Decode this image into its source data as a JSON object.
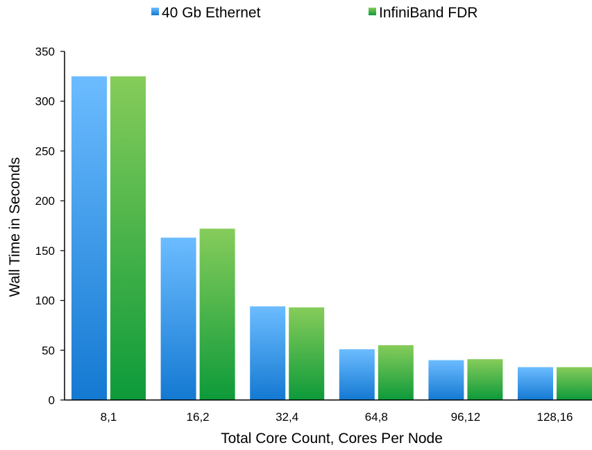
{
  "chart_data": {
    "type": "bar",
    "title": "",
    "xlabel": "Total Core Count, Cores Per Node",
    "ylabel": "Wall Time in Seconds",
    "categories": [
      "8,1",
      "16,2",
      "32,4",
      "64,8",
      "96,12",
      "128,16"
    ],
    "series": [
      {
        "name": "40 Gb Ethernet",
        "values": [
          325,
          163,
          94,
          51,
          40,
          33
        ],
        "color": "#3d9be9"
      },
      {
        "name": "InfiniBand FDR",
        "values": [
          325,
          172,
          93,
          55,
          41,
          33
        ],
        "color": "#3fae3f"
      }
    ],
    "ylim": [
      0,
      350
    ],
    "yticks": [
      0,
      50,
      100,
      150,
      200,
      250,
      300,
      350
    ],
    "grid": false,
    "legend": "top-center"
  }
}
